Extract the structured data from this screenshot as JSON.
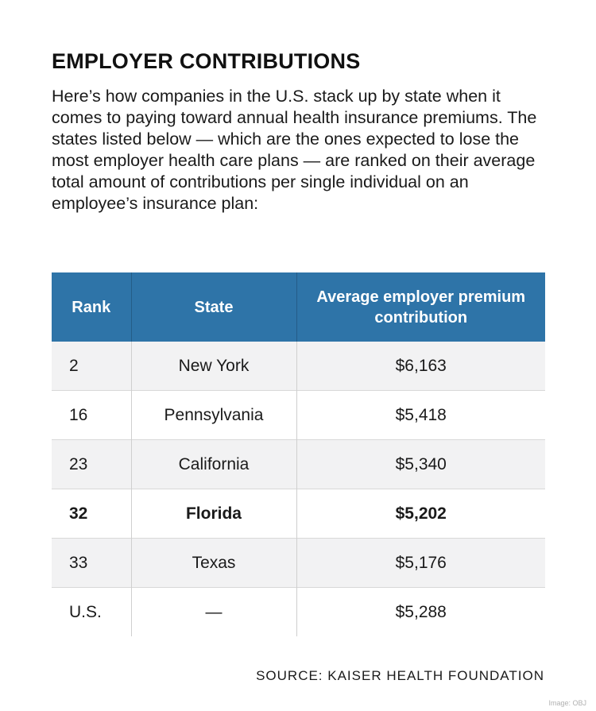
{
  "chart_data": {
    "type": "table",
    "title": "EMPLOYER CONTRIBUTIONS",
    "subtitle": "Here’s how companies in the U.S. stack up by state when it comes to paying toward annual health insurance premiums. The states listed below — which are the ones expected to lose the most employer health care plans — are ranked on their average total amount of contributions per single individual on an employee’s insurance plan:",
    "columns": [
      "Rank",
      "State",
      "Average employer premium contribution"
    ],
    "rows": [
      {
        "rank": "2",
        "state": "New York",
        "contribution": "$6,163",
        "highlight": false
      },
      {
        "rank": "16",
        "state": "Pennsylvania",
        "contribution": "$5,418",
        "highlight": false
      },
      {
        "rank": "23",
        "state": "California",
        "contribution": "$5,340",
        "highlight": false
      },
      {
        "rank": "32",
        "state": "Florida",
        "contribution": "$5,202",
        "highlight": true
      },
      {
        "rank": "33",
        "state": "Texas",
        "contribution": "$5,176",
        "highlight": false
      },
      {
        "rank": "U.S.",
        "state": "—",
        "contribution": "$5,288",
        "highlight": false
      }
    ],
    "source": "SOURCE: KAISER HEALTH FOUNDATION",
    "credit": "Image: OBJ",
    "header_color": "#2e74a8"
  }
}
